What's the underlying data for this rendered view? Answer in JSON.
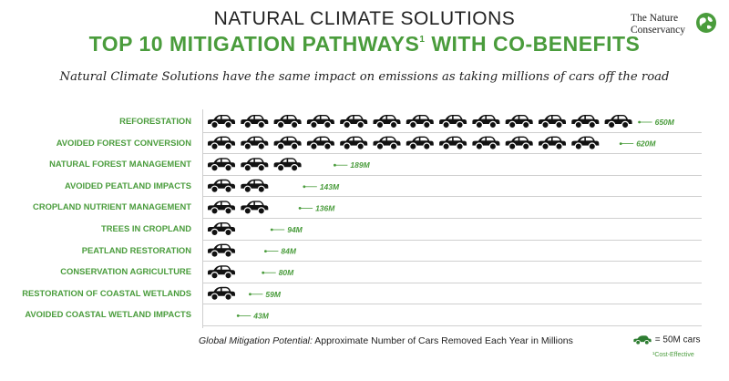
{
  "header": {
    "title_line1": "NATURAL CLIMATE SOLUTIONS",
    "title_line2": "TOP 10 MITIGATION PATHWAYS",
    "title_sup": "1",
    "title_line2_end": " WITH CO-BENEFITS",
    "subtitle": "Natural Climate Solutions have the same impact on emissions as taking millions of cars off the road"
  },
  "logo": {
    "line1": "The Nature",
    "line2": "Conservancy"
  },
  "colors": {
    "green": "#4a9c3c",
    "car": "#111111",
    "dark_green": "#2e7d32"
  },
  "chart_data": {
    "type": "bar",
    "unit_value": 50,
    "unit_label": "= 50M cars",
    "categories": [
      "REFORESTATION",
      "AVOIDED FOREST CONVERSION",
      "NATURAL FOREST MANAGEMENT",
      "AVOIDED PEATLAND IMPACTS",
      "CROPLAND NUTRIENT MANAGEMENT",
      "TREES IN CROPLAND",
      "PEATLAND RESTORATION",
      "CONSERVATION AGRICULTURE",
      "RESTORATION OF COASTAL WETLANDS",
      "AVOIDED COASTAL WETLAND IMPACTS"
    ],
    "values": [
      650,
      620,
      189,
      143,
      136,
      94,
      84,
      80,
      59,
      43
    ],
    "value_labels": [
      "650M",
      "620M",
      "189M",
      "143M",
      "136M",
      "94M",
      "84M",
      "80M",
      "59M",
      "43M"
    ]
  },
  "footer": {
    "label": "Global Mitigation Potential:",
    "text": " Approximate Number of Cars Removed Each Year in Millions"
  },
  "legend": {
    "text": "= 50M cars"
  },
  "footnote": "¹Cost-Effective"
}
